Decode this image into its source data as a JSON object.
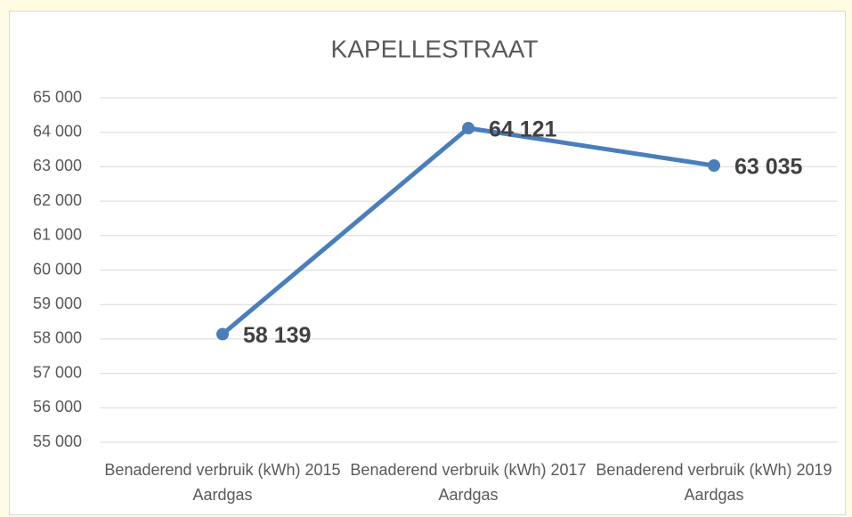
{
  "chart_data": {
    "type": "line",
    "title": "KAPELLESTRAAT",
    "categories": [
      "Benaderend verbruik (kWh) 2015 Aardgas",
      "Benaderend verbruik (kWh) 2017 Aardgas",
      "Benaderend verbruik (kWh) 2019 Aardgas"
    ],
    "values": [
      58139,
      64121,
      63035
    ],
    "value_labels": [
      "58 139",
      "64 121",
      "63 035"
    ],
    "color": "#4a7ebb",
    "ylim": [
      55000,
      65000
    ],
    "yticks": [
      {
        "value": 55000,
        "label": "55 000"
      },
      {
        "value": 56000,
        "label": "56 000"
      },
      {
        "value": 57000,
        "label": "57 000"
      },
      {
        "value": 58000,
        "label": "58 000"
      },
      {
        "value": 59000,
        "label": "59 000"
      },
      {
        "value": 60000,
        "label": "60 000"
      },
      {
        "value": 61000,
        "label": "61 000"
      },
      {
        "value": 62000,
        "label": "62 000"
      },
      {
        "value": 63000,
        "label": "63 000"
      },
      {
        "value": 64000,
        "label": "64 000"
      },
      {
        "value": 65000,
        "label": "65 000"
      }
    ],
    "grid": true
  }
}
